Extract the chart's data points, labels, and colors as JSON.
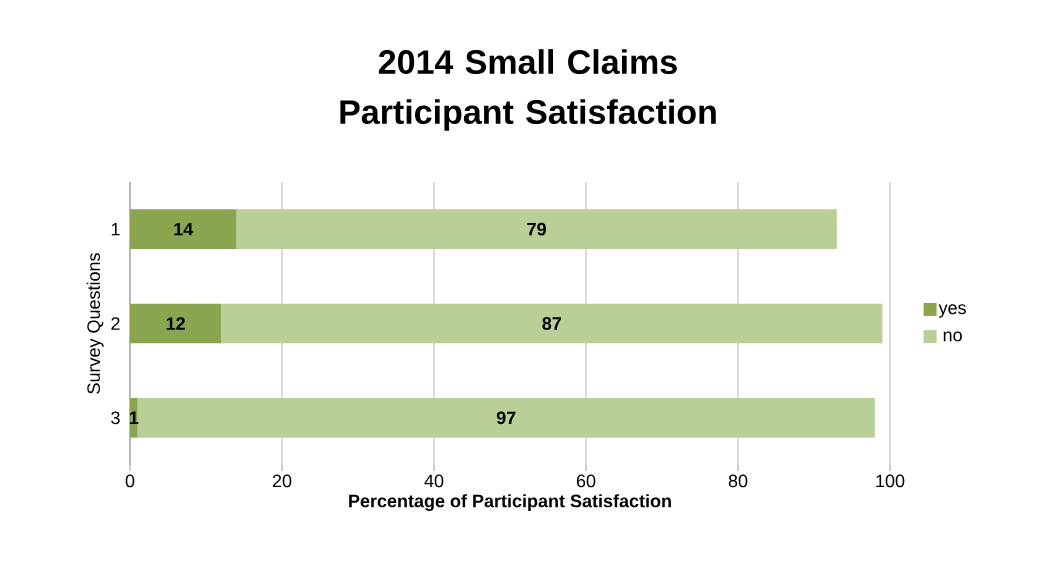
{
  "chart_data": {
    "type": "bar",
    "orientation": "horizontal",
    "stacked": true,
    "title": "2014 Small Claims Participant Satisfaction",
    "xlabel": "Percentage of Participant Satisfaction",
    "ylabel": "Survey Questions",
    "categories": [
      "1",
      "2",
      "3"
    ],
    "series": [
      {
        "name": "yes",
        "color": "#8aa54f",
        "values": [
          14,
          12,
          1
        ]
      },
      {
        "name": "no",
        "color": "#bace98",
        "values": [
          79,
          87,
          97
        ]
      }
    ],
    "xlim": [
      0,
      100
    ],
    "xticks": [
      0,
      20,
      40,
      60,
      80,
      100
    ],
    "grid": "x",
    "legend": "right",
    "data_labels": true
  }
}
